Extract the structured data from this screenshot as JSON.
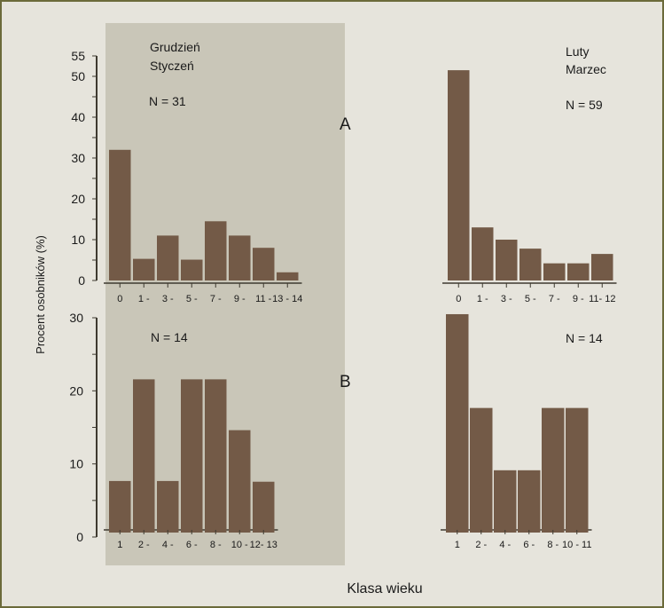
{
  "colors": {
    "background": "#e6e4dc",
    "frame": "#6b6a3a",
    "shaded_panel": "#c9c6b8",
    "bar": "#735a47",
    "axis": "#3e3a30"
  },
  "figure": {
    "ylabel": "Procent osobników (%)",
    "xlabel": "Klasa wieku",
    "row_labels": [
      "A",
      "B"
    ],
    "column_labels": [
      [
        "Grudzień",
        "Styczeń"
      ],
      [
        "Luty",
        "Marzec"
      ]
    ]
  },
  "chart_data": [
    {
      "type": "bar",
      "panel": "A-left",
      "row": "A",
      "period": "Grudzień / Styczeń",
      "n_label": "N = 31",
      "categories": [
        "0",
        "1 -",
        "3 -",
        "5 -",
        "7 -",
        "9 -",
        "11 -",
        "13 - 14"
      ],
      "values": [
        32,
        5.3,
        11,
        5.1,
        14.5,
        11,
        8,
        2
      ],
      "yticks": [
        "0",
        "10",
        "20",
        "30",
        "40",
        "50",
        "55"
      ],
      "ylim": [
        0,
        55
      ]
    },
    {
      "type": "bar",
      "panel": "A-right",
      "row": "A",
      "period": "Luty / Marzec",
      "n_label": "N = 59",
      "categories": [
        "0",
        "1 -",
        "3 -",
        "5 -",
        "7 -",
        "9 -",
        "11- 12"
      ],
      "values": [
        51.5,
        13,
        10,
        7.8,
        4.2,
        4.2,
        6.5
      ],
      "ylim": [
        0,
        55
      ]
    },
    {
      "type": "bar",
      "panel": "B-left",
      "row": "B",
      "period": "Grudzień / Styczeń",
      "n_label": "N = 14",
      "categories": [
        "1",
        "2 -",
        "4 -",
        "6 -",
        "8 -",
        "10 -",
        "12- 13"
      ],
      "values": [
        7.2,
        21.4,
        7.2,
        21.4,
        21.4,
        14.3,
        7.1
      ],
      "yticks": [
        "0",
        "10",
        "20",
        "30"
      ],
      "ylim": [
        0,
        30
      ]
    },
    {
      "type": "bar",
      "panel": "B-right",
      "row": "B",
      "period": "Luty / Marzec",
      "n_label": "N = 14",
      "categories": [
        "1",
        "2 -",
        "4 -",
        "6 -",
        "8 -",
        "10 - 11"
      ],
      "values": [
        30.5,
        17.4,
        8.7,
        8.7,
        17.4,
        17.4
      ],
      "ylim": [
        0,
        30
      ]
    }
  ]
}
